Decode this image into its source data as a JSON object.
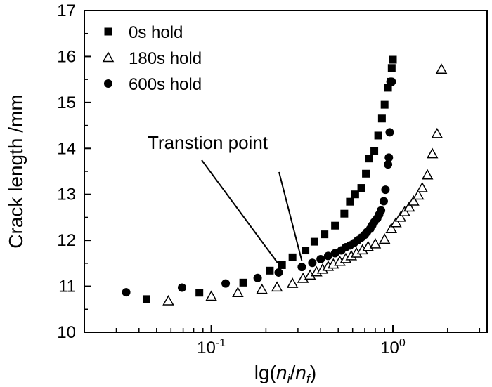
{
  "chart_data": {
    "type": "scatter",
    "xlabel": {
      "prefix": "lg(",
      "n": "n",
      "sub_i": "i",
      "slash": "/",
      "sub_f": "f",
      "suffix": ")"
    },
    "ylabel": "Crack length /mm",
    "xscale": "log",
    "xlim": [
      0.02,
      3.3
    ],
    "ylim": [
      10,
      17
    ],
    "grid": false,
    "legend_position": "top-left",
    "x_ticks": [
      {
        "value": 0.1,
        "base": "10",
        "exp": "-1"
      },
      {
        "value": 1.0,
        "base": "10",
        "exp": "0"
      }
    ],
    "y_ticks": [
      10,
      11,
      12,
      13,
      14,
      15,
      16,
      17
    ],
    "annotation": {
      "text": "Transtion point",
      "targets": [
        [
          0.245,
          11.46
        ],
        [
          0.315,
          11.42
        ]
      ]
    },
    "series": [
      {
        "name": "0s hold",
        "marker": "square",
        "x": [
          0.044,
          0.086,
          0.15,
          0.21,
          0.245,
          0.28,
          0.33,
          0.37,
          0.42,
          0.48,
          0.54,
          0.58,
          0.62,
          0.67,
          0.71,
          0.74,
          0.79,
          0.83,
          0.87,
          0.9,
          0.94,
          0.97,
          0.985,
          1.0
        ],
        "y": [
          10.72,
          10.86,
          11.08,
          11.34,
          11.46,
          11.63,
          11.78,
          11.97,
          12.13,
          12.32,
          12.58,
          12.84,
          13.0,
          13.14,
          13.45,
          13.78,
          13.95,
          14.28,
          14.65,
          14.95,
          15.32,
          15.45,
          15.75,
          15.93
        ]
      },
      {
        "name": "180s hold",
        "marker": "triangle-open",
        "x": [
          0.058,
          0.1,
          0.14,
          0.19,
          0.23,
          0.28,
          0.32,
          0.35,
          0.38,
          0.41,
          0.44,
          0.47,
          0.51,
          0.55,
          0.59,
          0.63,
          0.68,
          0.73,
          0.8,
          0.9,
          0.98,
          1.04,
          1.1,
          1.16,
          1.23,
          1.3,
          1.38,
          1.45,
          1.55,
          1.65,
          1.75,
          1.85
        ],
        "y": [
          10.68,
          10.78,
          10.86,
          10.93,
          10.98,
          11.06,
          11.17,
          11.24,
          11.31,
          11.37,
          11.43,
          11.48,
          11.54,
          11.6,
          11.66,
          11.72,
          11.79,
          11.86,
          11.92,
          12.02,
          12.25,
          12.38,
          12.5,
          12.62,
          12.72,
          12.85,
          12.98,
          13.14,
          13.42,
          13.88,
          14.32,
          15.72
        ]
      },
      {
        "name": "600s hold",
        "marker": "circle",
        "x": [
          0.034,
          0.069,
          0.12,
          0.18,
          0.235,
          0.315,
          0.36,
          0.4,
          0.44,
          0.48,
          0.52,
          0.55,
          0.58,
          0.61,
          0.64,
          0.67,
          0.7,
          0.72,
          0.75,
          0.77,
          0.79,
          0.82,
          0.84,
          0.86,
          0.89,
          0.91,
          0.94,
          0.95,
          0.96,
          0.97,
          0.985
        ],
        "y": [
          10.87,
          10.97,
          11.06,
          11.18,
          11.3,
          11.42,
          11.51,
          11.59,
          11.66,
          11.72,
          11.78,
          11.85,
          11.89,
          11.94,
          12.0,
          12.06,
          12.12,
          12.18,
          12.25,
          12.33,
          12.4,
          12.48,
          12.56,
          12.65,
          12.85,
          13.1,
          13.65,
          13.8,
          14.35,
          15.45,
          15.45
        ]
      }
    ]
  }
}
